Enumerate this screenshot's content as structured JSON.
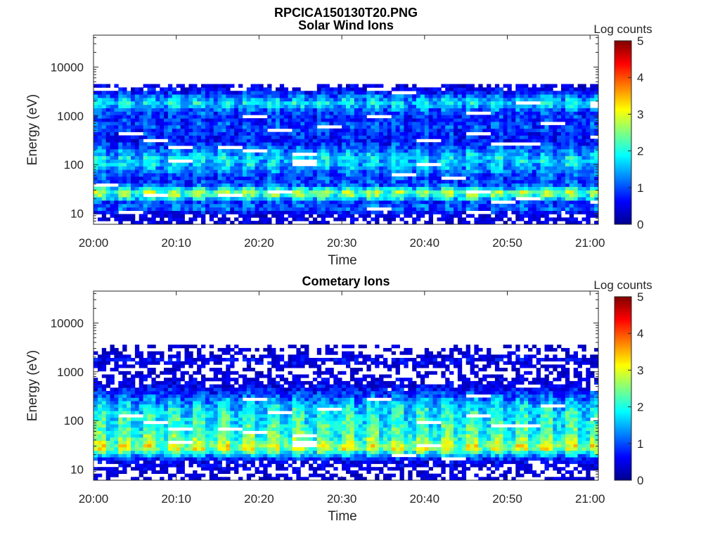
{
  "figure": {
    "title": "RPCICA150130T20.PNG"
  },
  "colormap": [
    "#00008f",
    "#0000ff",
    "#0080ff",
    "#00ffff",
    "#80ff80",
    "#ffff00",
    "#ff8000",
    "#ff0000",
    "#800000"
  ],
  "chart_data": [
    {
      "type": "heatmap",
      "title": "Solar Wind Ions",
      "xlabel": "Time",
      "ylabel": "Energy (eV)",
      "x_ticks": [
        "20:00",
        "20:10",
        "20:20",
        "20:30",
        "20:40",
        "20:50",
        "21:00"
      ],
      "x_range": [
        "20:00",
        "21:01"
      ],
      "y_scale": "log",
      "y_ticks": [
        10,
        100,
        1000,
        10000
      ],
      "y_tick_labels": [
        "10",
        "100",
        "1000",
        "10000"
      ],
      "y_range": [
        6,
        45000
      ],
      "colorbar": {
        "label": "Log counts",
        "range": [
          0,
          5
        ],
        "ticks": [
          "0",
          "1",
          "2",
          "3",
          "4",
          "5"
        ]
      },
      "scan_times_min": [
        0,
        3,
        6,
        9,
        12,
        15,
        18,
        21,
        24,
        27,
        30,
        33,
        36,
        39,
        42,
        45,
        48,
        51,
        54,
        57,
        60
      ],
      "sparse_bands_eV": [
        40000,
        28000,
        19000,
        12000,
        8000,
        6000
      ],
      "energy_profile": [
        {
          "energy": 9,
          "value": 0.3
        },
        {
          "energy": 13,
          "value": 1.3
        },
        {
          "energy": 17,
          "value": 1.0
        },
        {
          "energy": 22,
          "value": 2.4
        },
        {
          "energy": 28,
          "value": 2.8
        },
        {
          "energy": 38,
          "value": 1.2
        },
        {
          "energy": 50,
          "value": 1.0
        },
        {
          "energy": 70,
          "value": 1.3
        },
        {
          "energy": 100,
          "value": 1.8
        },
        {
          "energy": 140,
          "value": 1.9
        },
        {
          "energy": 200,
          "value": 1.4
        },
        {
          "energy": 300,
          "value": 0.8
        },
        {
          "energy": 450,
          "value": 0.9
        },
        {
          "energy": 650,
          "value": 1.1
        },
        {
          "energy": 900,
          "value": 0.9
        },
        {
          "energy": 1300,
          "value": 1.2
        },
        {
          "energy": 1800,
          "value": 2.0
        },
        {
          "energy": 2500,
          "value": 1.4
        },
        {
          "energy": 3300,
          "value": 0.6
        },
        {
          "energy": 4400,
          "value": 0.3
        }
      ]
    },
    {
      "type": "heatmap",
      "title": "Cometary Ions",
      "xlabel": "Time",
      "ylabel": "Energy (eV)",
      "x_ticks": [
        "20:00",
        "20:10",
        "20:20",
        "20:30",
        "20:40",
        "20:50",
        "21:00"
      ],
      "x_range": [
        "20:00",
        "21:01"
      ],
      "y_scale": "log",
      "y_ticks": [
        10,
        100,
        1000,
        10000
      ],
      "y_tick_labels": [
        "10",
        "100",
        "1000",
        "10000"
      ],
      "y_range": [
        6,
        45000
      ],
      "colorbar": {
        "label": "Log counts",
        "range": [
          0,
          5
        ],
        "ticks": [
          "0",
          "1",
          "2",
          "3",
          "4",
          "5"
        ]
      },
      "scan_times_min": [
        0,
        3,
        6,
        9,
        12,
        15,
        18,
        21,
        24,
        27,
        30,
        33,
        36,
        39,
        42,
        45,
        48,
        51,
        54,
        57,
        60
      ],
      "sparse_bands_eV": [
        9500,
        6000
      ],
      "energy_profile": [
        {
          "energy": 9,
          "value": 0.2
        },
        {
          "energy": 12,
          "value": 0.4
        },
        {
          "energy": 15,
          "value": 0.5
        },
        {
          "energy": 18,
          "value": 1.3
        },
        {
          "energy": 22,
          "value": 2.2
        },
        {
          "energy": 28,
          "value": 3.3
        },
        {
          "energy": 35,
          "value": 2.9
        },
        {
          "energy": 45,
          "value": 2.6
        },
        {
          "energy": 60,
          "value": 2.4
        },
        {
          "energy": 80,
          "value": 2.3
        },
        {
          "energy": 110,
          "value": 2.2
        },
        {
          "energy": 150,
          "value": 2.1
        },
        {
          "energy": 210,
          "value": 1.8
        },
        {
          "energy": 300,
          "value": 1.3
        },
        {
          "energy": 420,
          "value": 0.8
        },
        {
          "energy": 600,
          "value": 0.4
        },
        {
          "energy": 850,
          "value": 0.2
        },
        {
          "energy": 1200,
          "value": 0.1
        },
        {
          "energy": 1700,
          "value": 0.6
        },
        {
          "energy": 2500,
          "value": 0.1
        },
        {
          "energy": 3500,
          "value": 0.1
        }
      ]
    }
  ]
}
